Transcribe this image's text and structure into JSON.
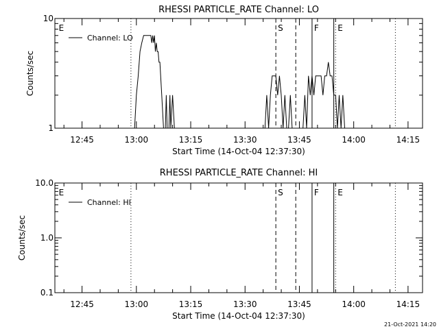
{
  "chart_data": [
    {
      "type": "line",
      "title": "RHESSI PARTICLE_RATE Channel: LO",
      "xlabel": "Start Time (14-Oct-04 12:37:30)",
      "ylabel": "Counts/sec",
      "y_scale": "log",
      "ylim": [
        1,
        10
      ],
      "y_ticks": [
        {
          "value": 1,
          "label": "1"
        },
        {
          "value": 10,
          "label": "10"
        }
      ],
      "xlim": [
        "12:37:30",
        "14:19:00"
      ],
      "x_ticks": [
        "12:45",
        "13:00",
        "13:15",
        "13:30",
        "13:45",
        "14:00",
        "14:15"
      ],
      "legend": {
        "position": "top-left",
        "entries": [
          "Channel: LO"
        ]
      },
      "series": [
        {
          "name": "Channel: LO",
          "points": [
            [
              "12:59:30",
              1
            ],
            [
              "13:00:00",
              2
            ],
            [
              "13:00:30",
              3
            ],
            [
              "13:01:00",
              5
            ],
            [
              "13:01:30",
              6
            ],
            [
              "13:02:00",
              7
            ],
            [
              "13:02:30",
              7
            ],
            [
              "13:03:00",
              7
            ],
            [
              "13:03:30",
              7
            ],
            [
              "13:04:00",
              7
            ],
            [
              "13:04:15",
              6
            ],
            [
              "13:04:30",
              7
            ],
            [
              "13:04:45",
              6
            ],
            [
              "13:05:00",
              7
            ],
            [
              "13:05:15",
              5
            ],
            [
              "13:05:30",
              6
            ],
            [
              "13:05:45",
              5
            ],
            [
              "13:06:00",
              5
            ],
            [
              "13:06:15",
              4
            ],
            [
              "13:06:30",
              4
            ],
            [
              "13:07:00",
              2
            ],
            [
              "13:07:30",
              1
            ],
            [
              "13:08:00",
              1
            ],
            [
              "13:08:15",
              2
            ],
            [
              "13:08:30",
              1
            ],
            [
              "13:09:00",
              1
            ],
            [
              "13:09:15",
              2
            ],
            [
              "13:09:30",
              1
            ],
            [
              "13:10:00",
              2
            ],
            [
              "13:10:30",
              1
            ],
            [
              "13:35:30",
              1
            ],
            [
              "13:36:00",
              2
            ],
            [
              "13:36:30",
              1
            ],
            [
              "13:37:00",
              2
            ],
            [
              "13:37:30",
              3
            ],
            [
              "13:38:00",
              3
            ],
            [
              "13:38:30",
              3
            ],
            [
              "13:39:00",
              2
            ],
            [
              "13:39:30",
              3
            ],
            [
              "13:40:00",
              2
            ],
            [
              "13:40:30",
              1
            ],
            [
              "13:41:00",
              2
            ],
            [
              "13:41:30",
              1
            ],
            [
              "13:42:00",
              1
            ],
            [
              "13:42:30",
              2
            ],
            [
              "13:43:00",
              1
            ],
            [
              "13:43:30",
              1
            ],
            [
              "13:44:00",
              1
            ],
            [
              "13:46:00",
              1
            ],
            [
              "13:46:30",
              2
            ],
            [
              "13:47:00",
              1
            ],
            [
              "13:47:30",
              3
            ],
            [
              "13:48:00",
              2
            ],
            [
              "13:48:30",
              3
            ],
            [
              "13:49:00",
              2
            ],
            [
              "13:49:30",
              3
            ],
            [
              "13:50:00",
              3
            ],
            [
              "13:50:30",
              3
            ],
            [
              "13:51:00",
              3
            ],
            [
              "13:51:30",
              2
            ],
            [
              "13:52:00",
              3
            ],
            [
              "13:52:30",
              3
            ],
            [
              "13:53:00",
              4
            ],
            [
              "13:53:30",
              3
            ],
            [
              "13:54:00",
              3
            ],
            [
              "13:54:30",
              2
            ],
            [
              "13:55:00",
              2
            ],
            [
              "13:55:30",
              1
            ],
            [
              "13:56:00",
              2
            ],
            [
              "13:56:30",
              1
            ],
            [
              "13:57:00",
              2
            ],
            [
              "13:57:30",
              1
            ]
          ]
        }
      ],
      "markers": [
        {
          "time": "12:58:30",
          "style": "dotted",
          "label": ""
        },
        {
          "time": "12:38:00",
          "style": "none",
          "label": "E"
        },
        {
          "time": "13:38:30",
          "style": "dashed",
          "label": "S"
        },
        {
          "time": "13:44:00",
          "style": "dashed",
          "label": ""
        },
        {
          "time": "13:48:30",
          "style": "solid",
          "label": "F"
        },
        {
          "time": "13:54:30",
          "style": "solid",
          "label": ""
        },
        {
          "time": "13:55:00",
          "style": "dotted",
          "label": "E"
        },
        {
          "time": "14:11:30",
          "style": "dotted",
          "label": ""
        }
      ]
    },
    {
      "type": "line",
      "title": "RHESSI PARTICLE_RATE Channel: HI",
      "xlabel": "Start Time (14-Oct-04 12:37:30)",
      "ylabel": "Counts/sec",
      "y_scale": "log",
      "ylim": [
        0.1,
        10
      ],
      "y_ticks": [
        {
          "value": 0.1,
          "label": "0.1"
        },
        {
          "value": 1,
          "label": "1.0"
        },
        {
          "value": 10,
          "label": "10.0"
        }
      ],
      "xlim": [
        "12:37:30",
        "14:19:00"
      ],
      "x_ticks": [
        "12:45",
        "13:00",
        "13:15",
        "13:30",
        "13:45",
        "14:00",
        "14:15"
      ],
      "legend": {
        "position": "top-left",
        "entries": [
          "Channel: HI"
        ]
      },
      "series": [
        {
          "name": "Channel: HI",
          "points": []
        }
      ],
      "markers": [
        {
          "time": "12:58:30",
          "style": "dotted",
          "label": ""
        },
        {
          "time": "12:38:00",
          "style": "none",
          "label": "E"
        },
        {
          "time": "13:38:30",
          "style": "dashed",
          "label": "S"
        },
        {
          "time": "13:44:00",
          "style": "dashed",
          "label": ""
        },
        {
          "time": "13:48:30",
          "style": "solid",
          "label": "F"
        },
        {
          "time": "13:54:30",
          "style": "solid",
          "label": ""
        },
        {
          "time": "13:55:00",
          "style": "dotted",
          "label": "E"
        },
        {
          "time": "14:11:30",
          "style": "dotted",
          "label": ""
        }
      ]
    }
  ],
  "footer": {
    "timestamp": "21-Oct-2021 14:20"
  }
}
